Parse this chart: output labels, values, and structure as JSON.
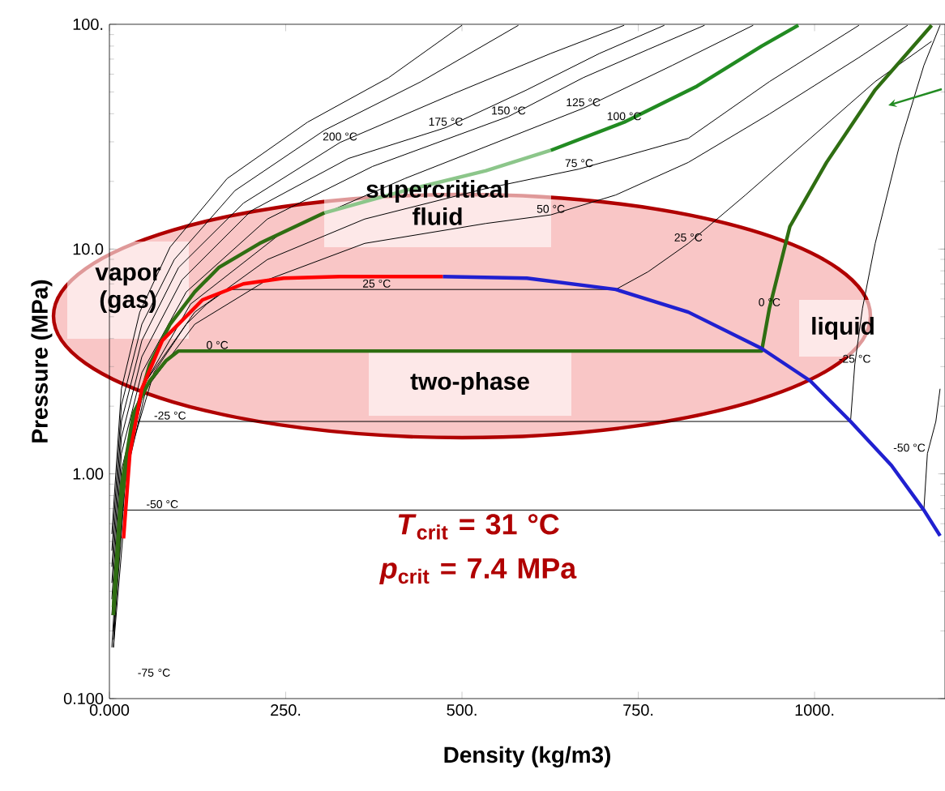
{
  "chart_data": {
    "type": "line",
    "log": "y",
    "xlabel": "Density (kg/m3)",
    "ylabel": "Pressure (MPa)",
    "xlim": [
      0,
      1185
    ],
    "ylim": [
      0.1,
      100
    ],
    "xticks": [
      {
        "value": 0,
        "label": "0.000"
      },
      {
        "value": 250,
        "label": "250."
      },
      {
        "value": 500,
        "label": "500."
      },
      {
        "value": 750,
        "label": "750."
      },
      {
        "value": 1000,
        "label": "1000."
      }
    ],
    "yticks": [
      {
        "value": 0.1,
        "label": "0.100"
      },
      {
        "value": 1,
        "label": "1.00"
      },
      {
        "value": 10,
        "label": "10.0"
      },
      {
        "value": 100,
        "label": "100."
      }
    ],
    "series": [
      {
        "color": "#000000",
        "x": [
          3.4,
          17,
          43,
          86,
          167,
          281,
          396,
          500
        ],
        "values": [
          0.54,
          2.39,
          5.24,
          10.2,
          20.6,
          36.7,
          57.9,
          99
        ]
      },
      {
        "color": "#000000",
        "x": [
          3.4,
          17,
          46,
          92,
          178,
          305,
          442,
          580
        ],
        "values": [
          0.455,
          2.02,
          4.63,
          8.98,
          18.2,
          33.8,
          55.6,
          99
        ]
      },
      {
        "color": "#000000",
        "x": [
          3.4,
          17,
          46,
          98,
          190,
          327,
          488,
          626,
          730
        ],
        "values": [
          0.386,
          1.71,
          3.92,
          8.27,
          16.0,
          29.8,
          49.1,
          74.2,
          99
        ]
      },
      {
        "color": "#000000",
        "x": [
          3.4,
          17,
          46,
          103,
          201,
          339,
          477,
          592,
          695,
          787
        ],
        "values": [
          0.327,
          1.45,
          3.32,
          7.3,
          14.8,
          25.3,
          34.7,
          51.1,
          74.2,
          99
        ]
      },
      {
        "color": "#000000",
        "x": [
          3.4,
          17,
          46,
          109,
          224,
          373,
          566,
          672,
          764,
          844
        ],
        "values": [
          0.277,
          1.23,
          2.82,
          6.45,
          13.6,
          23.3,
          38.9,
          57.9,
          77.3,
          99
        ]
      },
      {
        "color": "#000000",
        "x": [
          3.4,
          17,
          46,
          115,
          247,
          419,
          672,
          798,
          913
        ],
        "values": [
          0.235,
          1.04,
          2.39,
          5.69,
          12.0,
          20.6,
          42.3,
          65.6,
          99
        ]
      },
      {
        "color": "#000000",
        "x": [
          5.7,
          23,
          52,
          121,
          224,
          362,
          534,
          666,
          821,
          936,
          1063
        ],
        "values": [
          0.199,
          1.04,
          2.59,
          5.24,
          8.98,
          13.6,
          18.6,
          22.7,
          31.1,
          55.6,
          99
        ]
      },
      {
        "color": "#000000",
        "x": [
          5.7,
          23,
          52,
          121,
          224,
          362,
          534,
          626,
          718,
          821,
          936,
          1063,
          1132
        ],
        "values": [
          0.183,
          0.96,
          2.39,
          4.63,
          7.3,
          10.6,
          13.0,
          14.2,
          17.4,
          24.3,
          39.9,
          71.2,
          99
        ]
      },
      {
        "color": "#000000",
        "x": [
          5.7,
          29,
          63,
          109,
          138,
          167,
          718,
          764,
          821,
          902,
          994,
          1086,
          1166
        ],
        "values": [
          0.169,
          1.23,
          2.82,
          4.63,
          5.69,
          6.61,
          6.61,
          7.93,
          10.6,
          17.4,
          31.1,
          55.6,
          84.0
        ]
      },
      {
        "color": "#000000",
        "x": [
          5.7,
          17,
          34,
          1051,
          1057,
          1068,
          1086,
          1120,
          1155,
          1178
        ],
        "values": [
          0.169,
          0.75,
          1.71,
          1.71,
          3.06,
          5.46,
          10.6,
          28.6,
          65.6,
          99
        ]
      },
      {
        "color": "#000000",
        "x": [
          3.4,
          15,
          1155,
          1160,
          1172,
          1178
        ],
        "values": [
          0.169,
          0.69,
          0.69,
          1.23,
          1.71,
          2.39
        ]
      },
      {
        "color": "#2f6e12",
        "x": [
          5.7,
          17,
          34,
          57,
          86,
          121,
          155,
          213,
          305
        ],
        "values": [
          0.235,
          0.75,
          1.71,
          3.06,
          4.63,
          6.45,
          8.27,
          10.6,
          14.5
        ]
      },
      {
        "color": "#8cc68a",
        "x": [
          305,
          419,
          534,
          626
        ],
        "values": [
          14.5,
          18.2,
          22.3,
          27.5
        ]
      },
      {
        "color": "#228b22",
        "x": [
          626,
          730,
          833,
          925,
          977
        ],
        "values": [
          27.5,
          36.7,
          53,
          80,
          99
        ]
      },
      {
        "color": "#2f6e12",
        "x": [
          5.7,
          17,
          34,
          57,
          80,
          98,
          925,
          936,
          965,
          1017,
          1086,
          1166
        ],
        "values": [
          0.255,
          0.88,
          1.86,
          2.59,
          3.18,
          3.52,
          3.52,
          5.46,
          12.6,
          24.3,
          51.1,
          99
        ]
      },
      {
        "color": "#ff0000",
        "x": [
          20,
          29,
          46,
          75,
          132,
          190,
          247,
          327,
          473
        ],
        "values": [
          0.516,
          1.23,
          2.39,
          3.92,
          5.94,
          7.0,
          7.42,
          7.55,
          7.55
        ]
      },
      {
        "color": "#2020d0",
        "x": [
          473,
          592,
          718,
          821,
          925,
          994,
          1051,
          1109,
          1155,
          1178
        ],
        "values": [
          7.55,
          7.42,
          6.61,
          5.24,
          3.61,
          2.59,
          1.71,
          1.09,
          0.69,
          0.53
        ]
      }
    ],
    "annotations": [
      "vapor (gas)",
      "supercritical fluid",
      "two-phase",
      "liquid",
      "*T*$_{crit}$ = 31 °C",
      "*p*$_{crit}$ = 7.4 MPa",
      {
        "text": "200 °C",
        "x": 327,
        "y": 29.8
      },
      {
        "text": "175 °C",
        "x": 477,
        "y": 34.7
      },
      {
        "text": "150 °C",
        "x": 566,
        "y": 38.9
      },
      {
        "text": "125 °C",
        "x": 672,
        "y": 42.3
      },
      {
        "text": "100 °C",
        "x": 730,
        "y": 36.7
      },
      {
        "text": "75 °C",
        "x": 666,
        "y": 22.7
      },
      {
        "text": "50 °C",
        "x": 626,
        "y": 14.2
      },
      {
        "text": "25 °C",
        "x": 821,
        "y": 10.6
      },
      {
        "text": "25 °C",
        "x": 379,
        "y": 6.61
      },
      {
        "text": "0 °C",
        "x": 153,
        "y": 3.52
      },
      {
        "text": "0 °C",
        "x": 936,
        "y": 5.46
      },
      {
        "text": "-25 °C",
        "x": 86,
        "y": 1.71
      },
      {
        "text": "-25 °C",
        "x": 1057,
        "y": 3.06
      },
      {
        "text": "-50 °C",
        "x": 75,
        "y": 0.69
      },
      {
        "text": "-50 °C",
        "x": 1160,
        "y": 1.23
      },
      "-75 °C"
    ]
  }
}
